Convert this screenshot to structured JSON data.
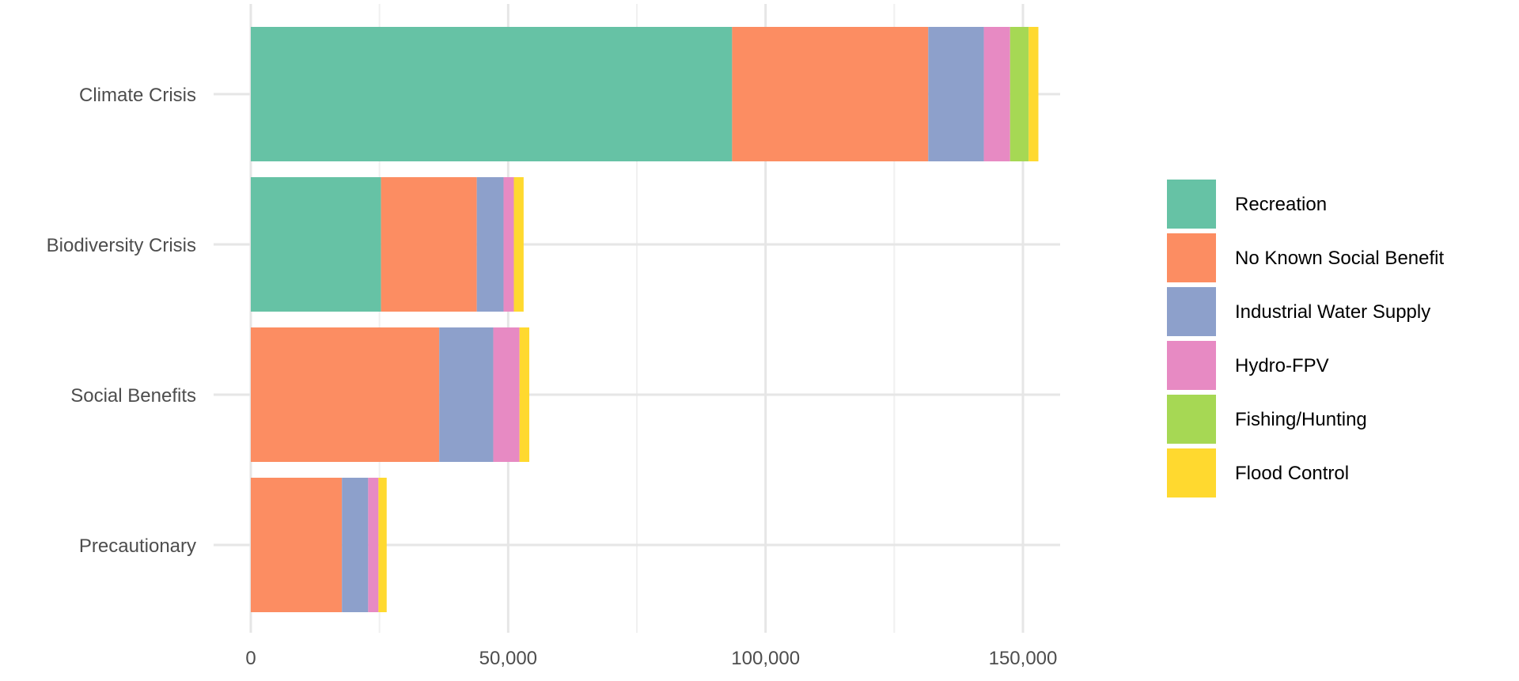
{
  "chart_data": {
    "type": "bar",
    "orientation": "horizontal",
    "stacked": true,
    "title": "",
    "xlabel": "",
    "ylabel": "",
    "categories": [
      "Climate Crisis",
      "Biodiversity Crisis",
      "Social Benefits",
      "Precautionary"
    ],
    "x_ticks": [
      0,
      50000,
      100000,
      150000
    ],
    "x_tick_labels": [
      "0",
      "50,000",
      "100,000",
      "150,000"
    ],
    "xlim": [
      0,
      160000
    ],
    "grid": true,
    "legend_position": "right",
    "series": [
      {
        "name": "Recreation",
        "color": "#66C2A5",
        "values": [
          93500,
          25300,
          0,
          0
        ]
      },
      {
        "name": "No Known Social Benefit",
        "color": "#FC8D62",
        "values": [
          38100,
          18600,
          36600,
          17700
        ]
      },
      {
        "name": "Industrial Water Supply",
        "color": "#8DA0CB",
        "values": [
          10800,
          5200,
          10500,
          5100
        ]
      },
      {
        "name": "Hydro-FPV",
        "color": "#E78AC3",
        "values": [
          5100,
          2000,
          5100,
          2000
        ]
      },
      {
        "name": "Fishing/Hunting",
        "color": "#A6D854",
        "values": [
          3600,
          0,
          0,
          0
        ]
      },
      {
        "name": "Flood Control",
        "color": "#FFD92F",
        "values": [
          1900,
          1900,
          1900,
          1600
        ]
      }
    ]
  }
}
